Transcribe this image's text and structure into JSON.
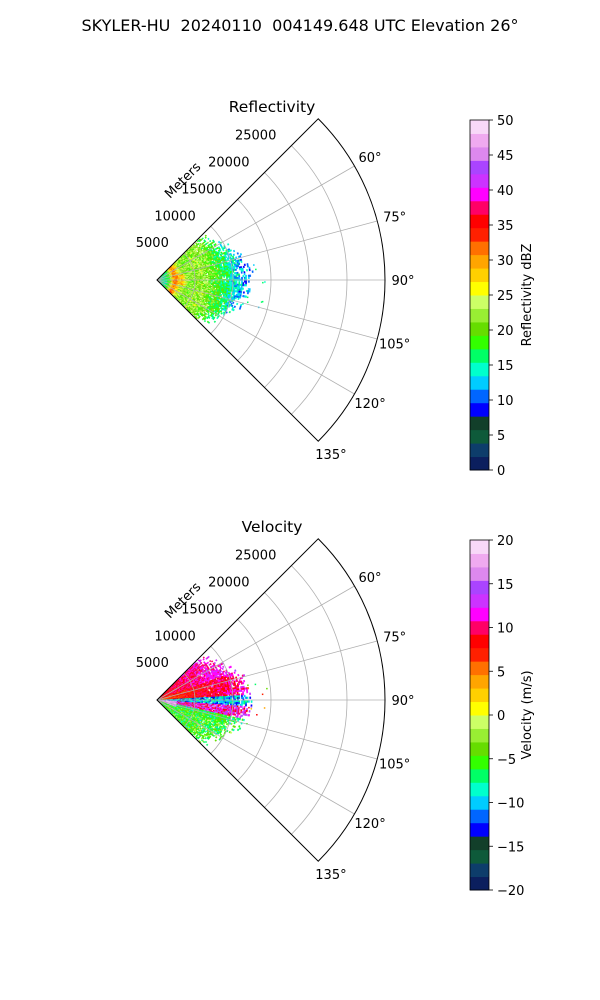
{
  "figure_title": "SKYLER-HU  20240110  004149.648 UTC Elevation 26°",
  "chart_data": [
    {
      "type": "heatmap",
      "title": "Reflectivity",
      "radial_label": "Meters",
      "r_ticks": [
        5000,
        10000,
        15000,
        20000,
        25000
      ],
      "r_tick_labels": [
        "5000",
        "10000",
        "15000",
        "20000",
        "25000"
      ],
      "theta_ticks_deg": [
        60,
        75,
        90,
        105,
        120,
        135
      ],
      "theta_tick_labels": [
        "60°",
        "75°",
        "90°",
        "105°",
        "120°",
        "135°"
      ],
      "theta_range_deg": [
        45,
        135
      ],
      "r_range": [
        0,
        30000
      ],
      "grid": true,
      "data_extent_r_max": 14000,
      "colorbar": {
        "label": "Reflectivity dBZ",
        "range": [
          0,
          50
        ],
        "ticks": [
          0,
          5,
          10,
          15,
          20,
          25,
          30,
          35,
          40,
          45,
          50
        ],
        "tick_labels": [
          "0",
          "5",
          "10",
          "15",
          "20",
          "25",
          "30",
          "35",
          "40",
          "45",
          "50"
        ],
        "colors": [
          "#0b1f5e",
          "#0d3d6b",
          "#0e5a3a",
          "#123f2a",
          "#0000ff",
          "#0066ff",
          "#00ccff",
          "#00ffcc",
          "#00ff66",
          "#33ff00",
          "#66dd00",
          "#99ee33",
          "#ccff66",
          "#ffff00",
          "#ffd000",
          "#ffa500",
          "#ff7000",
          "#ff2000",
          "#ff0000",
          "#ff0066",
          "#ff00ff",
          "#cc33ff",
          "#aa44ff",
          "#dd88ee",
          "#f0aaf0",
          "#f8d8f8"
        ]
      }
    },
    {
      "type": "heatmap",
      "title": "Velocity",
      "radial_label": "Meters",
      "r_ticks": [
        5000,
        10000,
        15000,
        20000,
        25000
      ],
      "r_tick_labels": [
        "5000",
        "10000",
        "15000",
        "20000",
        "25000"
      ],
      "theta_ticks_deg": [
        60,
        75,
        90,
        105,
        120,
        135
      ],
      "theta_tick_labels": [
        "60°",
        "75°",
        "90°",
        "105°",
        "120°",
        "135°"
      ],
      "theta_range_deg": [
        45,
        135
      ],
      "r_range": [
        0,
        30000
      ],
      "grid": true,
      "data_extent_r_max": 14000,
      "colorbar": {
        "label": "Velocity (m/s)",
        "range": [
          -20,
          20
        ],
        "ticks": [
          -20,
          -15,
          -10,
          -5,
          0,
          5,
          10,
          15,
          20
        ],
        "tick_labels": [
          "−20",
          "−15",
          "−10",
          "−5",
          "0",
          "5",
          "10",
          "15",
          "20"
        ],
        "colors": [
          "#0b1f5e",
          "#0d3d6b",
          "#0e5a3a",
          "#123f2a",
          "#0000ff",
          "#0066ff",
          "#00ccff",
          "#00ffcc",
          "#00ff66",
          "#33ff00",
          "#66dd00",
          "#99ee33",
          "#ccff66",
          "#ffff00",
          "#ffd000",
          "#ffa500",
          "#ff7000",
          "#ff2000",
          "#ff0000",
          "#ff0066",
          "#ff00ff",
          "#cc33ff",
          "#aa44ff",
          "#dd88ee",
          "#f0aaf0",
          "#f8d8f8"
        ]
      }
    }
  ]
}
